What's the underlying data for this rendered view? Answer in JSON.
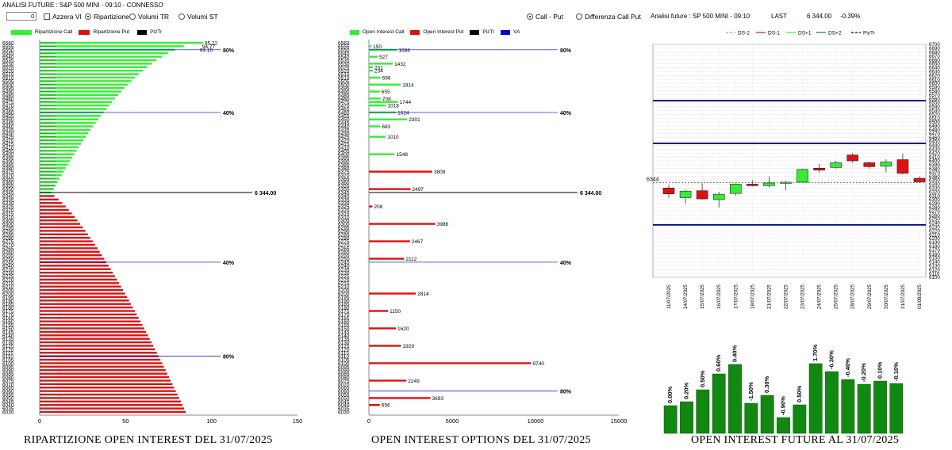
{
  "window_title": "ANALISI FUTURE : S&P 500 MINI - 09:10 - CONNESSO",
  "controls": {
    "spin_value": "0",
    "azzera_label": "Azzera VI",
    "radio_ripartizione": "Ripartizione",
    "radio_volumi_tr": "Volumi TR",
    "radio_volumi_st": "Volumi ST",
    "radio_call_put": "Call - Put",
    "radio_differenza": "Differenza Call Put"
  },
  "header_right": {
    "title": "Analisi future : SP 500 MINI - 09:10",
    "last_label": "LAST",
    "last_value": "6 344.00",
    "change": "-0.39%"
  },
  "captions": {
    "left": "RIPARTIZIONE OPEN INTEREST DEL 31/07/2025",
    "middle": "OPEN INTEREST OPTIONS DEL 31/07/2025",
    "right": "OPEN INTEREST FUTURE AL 31/07/2025"
  },
  "colors": {
    "call": "#33ee33",
    "put": "#dd1111",
    "pizt": "#000000",
    "va": "#0000cc",
    "candle_up": "#33ee33",
    "candle_down": "#dd1111",
    "level_line": "#00008b",
    "oi_bar": "#118811"
  },
  "chart_data": [
    {
      "type": "bar",
      "orientation": "horizontal",
      "title": "",
      "legend": [
        "Ripartizione Call",
        "Ripartizione Put",
        "PizTr"
      ],
      "legend_placement": "top",
      "strikes_label_from": 6560,
      "strikes_label_to": 6030,
      "strikes_label_step": 5,
      "xlim": [
        0,
        150
      ],
      "xticks": [
        "0",
        "50",
        "100",
        "150"
      ],
      "reference_lines": [
        {
          "label": "80%"
        },
        {
          "label": "40%"
        },
        {
          "label": "6 344.00"
        },
        {
          "label": "40%"
        },
        {
          "label": "80%"
        }
      ],
      "top_labels": [
        "95.22",
        "94.77",
        "93.10"
      ]
    },
    {
      "type": "bar",
      "orientation": "horizontal",
      "title": "",
      "legend": [
        "Open Interest Call",
        "Open Interest Put",
        "PizTr",
        "VA"
      ],
      "legend_placement": "top",
      "xlim": [
        0,
        15000
      ],
      "xticks": [
        "0",
        "5000",
        "10000",
        "15000"
      ],
      "call_labels": [
        {
          "strike": 6555,
          "value": 150
        },
        {
          "strike": 6550,
          "value": 1684
        },
        {
          "strike": 6540,
          "value": 527
        },
        {
          "strike": 6530,
          "value": 1432
        },
        {
          "strike": 6525,
          "value": 231
        },
        {
          "strike": 6520,
          "value": 234
        },
        {
          "strike": 6510,
          "value": 698
        },
        {
          "strike": 6500,
          "value": 1914
        },
        {
          "strike": 6490,
          "value": 655
        },
        {
          "strike": 6480,
          "value": 708
        },
        {
          "strike": 6475,
          "value": 1744
        },
        {
          "strike": 6470,
          "value": 1018
        },
        {
          "strike": 6460,
          "value": 1624
        },
        {
          "strike": 6450,
          "value": 2301
        },
        {
          "strike": 6440,
          "value": 683
        },
        {
          "strike": 6425,
          "value": 1010
        },
        {
          "strike": 6400,
          "value": 1548
        }
      ],
      "put_labels": [
        {
          "strike": 6375,
          "value": 3808
        },
        {
          "strike": 6350,
          "value": 2497
        },
        {
          "strike": 6325,
          "value": 208
        },
        {
          "strike": 6300,
          "value": 3986
        },
        {
          "strike": 6275,
          "value": 2467
        },
        {
          "strike": 6250,
          "value": 2112
        },
        {
          "strike": 6200,
          "value": 2814
        },
        {
          "strike": 6175,
          "value": 1150
        },
        {
          "strike": 6150,
          "value": 1620
        },
        {
          "strike": 6125,
          "value": 1929
        },
        {
          "strike": 6100,
          "value": 9740
        },
        {
          "strike": 6075,
          "value": 2249
        },
        {
          "strike": 6050,
          "value": 3693
        },
        {
          "strike": 6040,
          "value": 656
        }
      ],
      "reference_lines": [
        {
          "label": "80%"
        },
        {
          "label": "40%"
        },
        {
          "label": "6 344.00"
        },
        {
          "label": "40%"
        },
        {
          "label": "80%"
        }
      ]
    },
    {
      "type": "candlestick",
      "title": "",
      "legend": [
        "DS-2",
        "DS-1",
        "DS+1",
        "DS+2",
        "PizTr"
      ],
      "legend_placement": "top",
      "x": [
        "11/07/2025",
        "14/07/2025",
        "15/07/2025",
        "16/07/2025",
        "17/07/2025",
        "18/07/2025",
        "21/07/2025",
        "22/07/2025",
        "23/07/2025",
        "24/07/2025",
        "25/07/2025",
        "28/07/2025",
        "29/07/2025",
        "30/07/2025",
        "31/07/2025",
        "01/08/2025"
      ],
      "ylim": [
        6100,
        6700
      ],
      "yticks_step": 10,
      "current_label": "6344",
      "levels": [
        6555,
        6445,
        6235
      ],
      "candles": [
        {
          "open": 6330,
          "close": 6315,
          "high": 6338,
          "low": 6305
        },
        {
          "open": 6305,
          "close": 6322,
          "high": 6325,
          "low": 6290
        },
        {
          "open": 6323,
          "close": 6302,
          "high": 6342,
          "low": 6300
        },
        {
          "open": 6300,
          "close": 6314,
          "high": 6320,
          "low": 6280
        },
        {
          "open": 6316,
          "close": 6340,
          "high": 6342,
          "low": 6310
        },
        {
          "open": 6340,
          "close": 6336,
          "high": 6350,
          "low": 6334
        },
        {
          "open": 6336,
          "close": 6343,
          "high": 6360,
          "low": 6332
        },
        {
          "open": 6344,
          "close": 6345,
          "high": 6348,
          "low": 6325
        },
        {
          "open": 6345,
          "close": 6378,
          "high": 6380,
          "low": 6344
        },
        {
          "open": 6381,
          "close": 6376,
          "high": 6392,
          "low": 6370
        },
        {
          "open": 6383,
          "close": 6395,
          "high": 6400,
          "low": 6380
        },
        {
          "open": 6415,
          "close": 6400,
          "high": 6420,
          "low": 6395
        },
        {
          "open": 6395,
          "close": 6385,
          "high": 6398,
          "low": 6380
        },
        {
          "open": 6386,
          "close": 6397,
          "high": 6404,
          "low": 6370
        },
        {
          "open": 6403,
          "close": 6368,
          "high": 6418,
          "low": 6365
        },
        {
          "open": 6355,
          "close": 6346,
          "high": 6360,
          "low": 6344
        }
      ]
    },
    {
      "type": "bar",
      "title": "",
      "values": [
        35,
        40,
        55,
        75,
        87,
        38,
        48,
        20,
        36,
        88,
        78,
        68,
        62,
        66,
        63
      ],
      "labels": [
        "0.00%",
        "0.20%",
        "0.50%",
        "0.60%",
        "0.40%",
        "-1.50%",
        "0.30%",
        "-0.90%",
        "0.50%",
        "1.70%",
        "-0.30%",
        "-0.40%",
        "-0.20%",
        "0.10%",
        "-0.10%"
      ]
    }
  ]
}
